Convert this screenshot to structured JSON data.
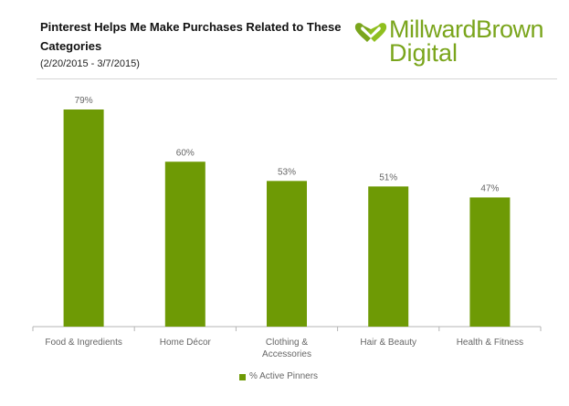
{
  "header": {
    "title": "Pinterest Helps Me Make Purchases Related to These Categories",
    "date_range": "(2/20/2015 - 3/7/2015)"
  },
  "logo": {
    "brand": "MillwardBrown",
    "sub": "Digital",
    "icon": "heart-link-icon",
    "color": "#7aa51c"
  },
  "legend": {
    "label": "% Active Pinners"
  },
  "chart_data": {
    "type": "bar",
    "categories": [
      "Food & Ingredients",
      "Home Décor",
      "Clothing & Accessories",
      "Hair & Beauty",
      "Health & Fitness"
    ],
    "category_lines": [
      [
        "Food & Ingredients"
      ],
      [
        "Home Décor"
      ],
      [
        "Clothing &",
        "Accessories"
      ],
      [
        "Hair & Beauty"
      ],
      [
        "Health & Fitness"
      ]
    ],
    "series": [
      {
        "name": "% Active Pinners",
        "values": [
          79,
          60,
          53,
          51,
          47
        ],
        "color": "#6e9a05"
      }
    ],
    "data_labels": [
      "79%",
      "60%",
      "53%",
      "51%",
      "47%"
    ],
    "ylim": [
      0,
      80
    ],
    "grid": false,
    "legend_position": "bottom"
  }
}
